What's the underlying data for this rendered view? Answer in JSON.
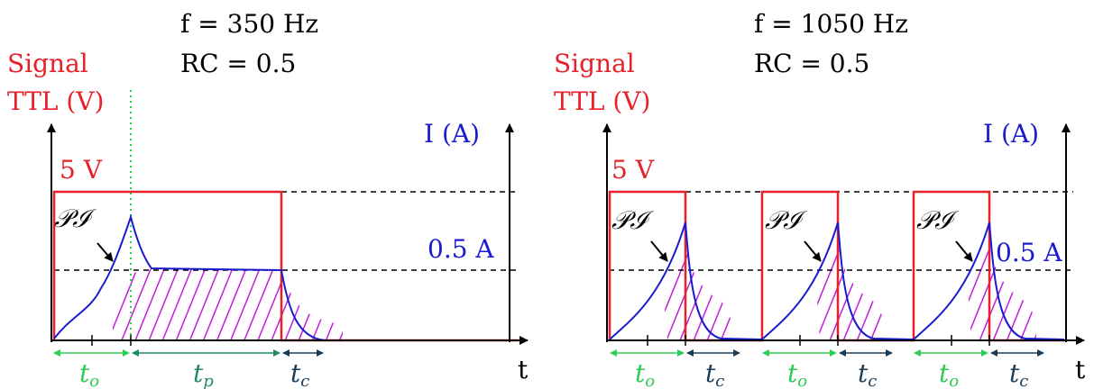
{
  "panels": [
    {
      "freq_label": "f = 350 Hz",
      "rc_label": "RC = 0.5",
      "signal_label": "Signal",
      "ttl_label": "TTL  (V)",
      "current_axis_label": "I (A)",
      "voltage_level_label": "5 V",
      "current_level_label": "0.5 A",
      "peak_label": "𝒫ℐ",
      "time_label": "t",
      "phases": [
        {
          "symbol": "t",
          "sub": "o",
          "color": "#2ecc55"
        },
        {
          "symbol": "t",
          "sub": "p",
          "color": "#1e8a6e"
        },
        {
          "symbol": "t",
          "sub": "c",
          "color": "#1c3d5a"
        }
      ]
    },
    {
      "freq_label": "f = 1050 Hz",
      "rc_label": "RC = 0.5",
      "signal_label": "Signal",
      "ttl_label": "TTL  (V)",
      "current_axis_label": "I (A)",
      "voltage_level_label": "5 V",
      "current_level_label": "0.5 A",
      "peak_labels": [
        "𝒫ℐ",
        "𝒫ℐ",
        "𝒫ℐ"
      ],
      "time_label": "t",
      "phases": [
        {
          "symbol": "t",
          "sub": "o",
          "color": "#2ecc55"
        },
        {
          "symbol": "t",
          "sub": "c",
          "color": "#1c3d5a"
        },
        {
          "symbol": "t",
          "sub": "o",
          "color": "#2ecc55"
        },
        {
          "symbol": "t",
          "sub": "c",
          "color": "#1c3d5a"
        },
        {
          "symbol": "t",
          "sub": "o",
          "color": "#2ecc55"
        },
        {
          "symbol": "t",
          "sub": "c",
          "color": "#1c3d5a"
        }
      ]
    }
  ],
  "colors": {
    "signal": "#e8202a",
    "current": "#1a1ad0",
    "hatch": "#c020d8",
    "axis": "#000000",
    "guide": "#2ecc55"
  }
}
